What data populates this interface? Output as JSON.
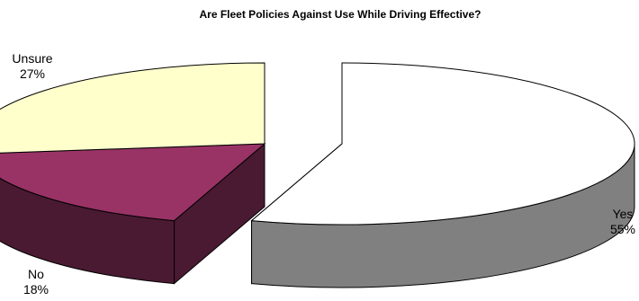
{
  "chart_data": {
    "type": "pie",
    "style": "3d-exploded",
    "title": "Are Fleet Policies Against Use While Driving Effective?",
    "categories": [
      "Yes",
      "No",
      "Unsure"
    ],
    "values": [
      55,
      18,
      27
    ],
    "value_labels": [
      "55%",
      "18%",
      "27%"
    ],
    "colors": {
      "Yes": "#ffffff",
      "No": "#993366",
      "Unsure": "#ffffcc"
    },
    "side_colors": {
      "Yes": "#808080",
      "No": "#4a1a32",
      "Unsure": "#7c7c5e"
    },
    "legend": "none"
  }
}
